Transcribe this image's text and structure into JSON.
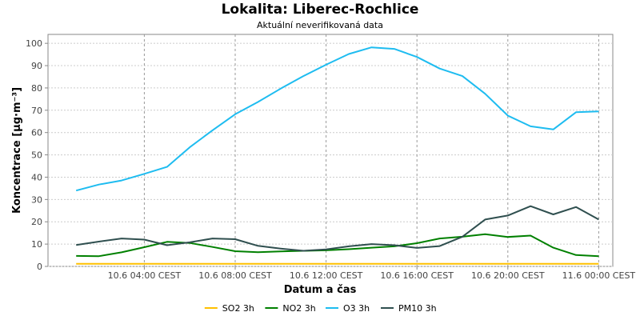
{
  "chart_data": {
    "type": "line",
    "title": "Lokalita: Liberec-Rochlice",
    "subtitle": "Aktuální neverifikovaná data",
    "xlabel": "Datum a čas",
    "ylabel": "Koncentrace [µg·m⁻³]",
    "x": [
      "10.6 01:00",
      "10.6 02:00",
      "10.6 03:00",
      "10.6 04:00",
      "10.6 05:00",
      "10.6 06:00",
      "10.6 07:00",
      "10.6 08:00",
      "10.6 09:00",
      "10.6 10:00",
      "10.6 11:00",
      "10.6 12:00",
      "10.6 13:00",
      "10.6 14:00",
      "10.6 15:00",
      "10.6 16:00",
      "10.6 17:00",
      "10.6 18:00",
      "10.6 19:00",
      "10.6 20:00",
      "10.6 21:00",
      "10.6 22:00",
      "10.6 23:00",
      "11.6 00:00"
    ],
    "x_ticks": [
      {
        "label": "10.6 04:00 CEST",
        "index": 3
      },
      {
        "label": "10.6 08:00 CEST",
        "index": 7
      },
      {
        "label": "10.6 12:00 CEST",
        "index": 11
      },
      {
        "label": "10.6 16:00 CEST",
        "index": 15
      },
      {
        "label": "10.6 20:00 CEST",
        "index": 19
      },
      {
        "label": "11.6 00:00 CEST",
        "index": 23
      }
    ],
    "x_range": [
      0,
      24.5
    ],
    "ylim": [
      0,
      104
    ],
    "y_ticks": [
      0,
      10,
      20,
      30,
      40,
      50,
      60,
      70,
      80,
      90,
      100
    ],
    "grid": true,
    "legend": "bottom",
    "series": [
      {
        "name": "SO2 3h",
        "color": "#FFC000",
        "values": [
          1.2,
          1.2,
          1.2,
          1.2,
          1.2,
          1.2,
          1.2,
          1.2,
          1.2,
          1.2,
          1.2,
          1.2,
          1.2,
          1.2,
          1.2,
          1.2,
          1.2,
          1.2,
          1.2,
          1.2,
          1.2,
          1.2,
          1.2,
          1.2
        ]
      },
      {
        "name": "NO2 3h",
        "color": "#008000",
        "values": [
          4.7,
          4.6,
          6.3,
          8.6,
          11.0,
          10.5,
          8.7,
          6.8,
          6.4,
          6.7,
          7.0,
          7.2,
          7.7,
          8.4,
          9.0,
          10.4,
          12.5,
          13.3,
          14.4,
          13.2,
          13.8,
          8.4,
          5.1,
          4.6
        ]
      },
      {
        "name": "O3 3h",
        "color": "#1EBCF0",
        "values": [
          34,
          36.7,
          38.5,
          41.5,
          44.6,
          53.4,
          61,
          68.2,
          73.7,
          79.7,
          85.3,
          90.4,
          95.2,
          98.2,
          97.5,
          93.9,
          88.7,
          85.3,
          77.4,
          67.6,
          62.8,
          61.4,
          69.1,
          69.5
        ]
      },
      {
        "name": "PM10 3h",
        "color": "#2F4F4F",
        "values": [
          9.6,
          11.1,
          12.5,
          12.0,
          9.5,
          10.8,
          12.5,
          12.2,
          9.2,
          8.0,
          7.0,
          7.6,
          9.0,
          10.0,
          9.5,
          8.3,
          9.1,
          13.3,
          21.0,
          22.8,
          27.0,
          23.3,
          26.6,
          21.0
        ]
      }
    ]
  }
}
